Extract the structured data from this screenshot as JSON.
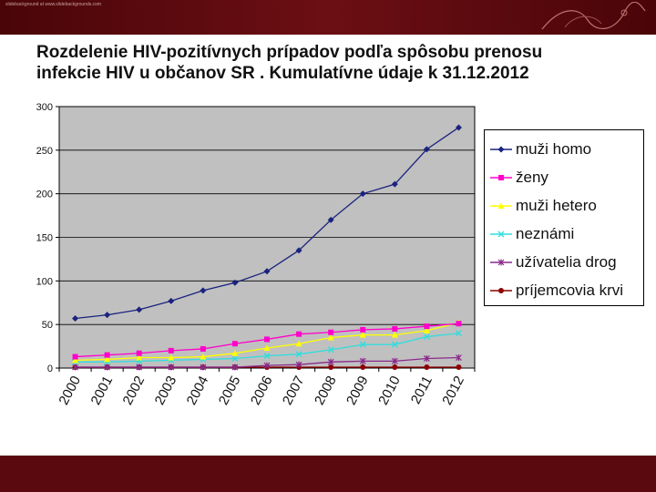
{
  "slide": {
    "credit": "slidebackground at www.slidebackgrounds.com"
  },
  "chart_data": {
    "type": "line",
    "title": "Rozdelenie HIV-pozitívnych prípadov podľa spôsobu prenosu infekcie HIV u občanov SR . Kumulatívne údaje k 31.12.2012",
    "title_lines": [
      "Rozdelenie HIV-pozitívnych prípadov podľa spôsobu prenosu",
      "infekcie HIV u občanov SR . Kumulatívne údaje k 31.12.2012"
    ],
    "xlabel": "",
    "ylabel": "",
    "ylim": [
      0,
      300
    ],
    "yticks": [
      0,
      50,
      100,
      150,
      200,
      250,
      300
    ],
    "grid": "horizontal",
    "legend_position": "right",
    "categories": [
      "2000",
      "2001",
      "2002",
      "2003",
      "2004",
      "2005",
      "2006",
      "2007",
      "2008",
      "2009",
      "2010",
      "2011",
      "2012"
    ],
    "series": [
      {
        "name": "muži homo",
        "color": "#1a237e",
        "marker": "diamond",
        "values": [
          57,
          61,
          67,
          77,
          89,
          98,
          111,
          135,
          170,
          200,
          211,
          251,
          276
        ]
      },
      {
        "name": "ženy",
        "color": "#ff00cc",
        "marker": "square",
        "values": [
          13,
          15,
          17,
          20,
          22,
          28,
          33,
          39,
          41,
          44,
          45,
          48,
          51
        ]
      },
      {
        "name": "muži hetero",
        "color": "#ffff00",
        "marker": "triangle",
        "values": [
          9,
          10,
          12,
          12,
          13,
          17,
          23,
          28,
          35,
          38,
          38,
          43,
          52
        ]
      },
      {
        "name": "neznámi",
        "color": "#33dddd",
        "marker": "x",
        "values": [
          7,
          7,
          8,
          9,
          10,
          11,
          14,
          16,
          21,
          27,
          27,
          36,
          40
        ]
      },
      {
        "name": "užívatelia drog",
        "color": "#8b2a8b",
        "marker": "star",
        "values": [
          1,
          1,
          1,
          1,
          1,
          1,
          3,
          4,
          7,
          8,
          8,
          11,
          12
        ]
      },
      {
        "name": "príjemcovia krvi",
        "color": "#8b0000",
        "marker": "circle",
        "values": [
          1,
          1,
          1,
          1,
          1,
          1,
          1,
          1,
          1,
          1,
          1,
          1,
          1
        ]
      }
    ]
  }
}
